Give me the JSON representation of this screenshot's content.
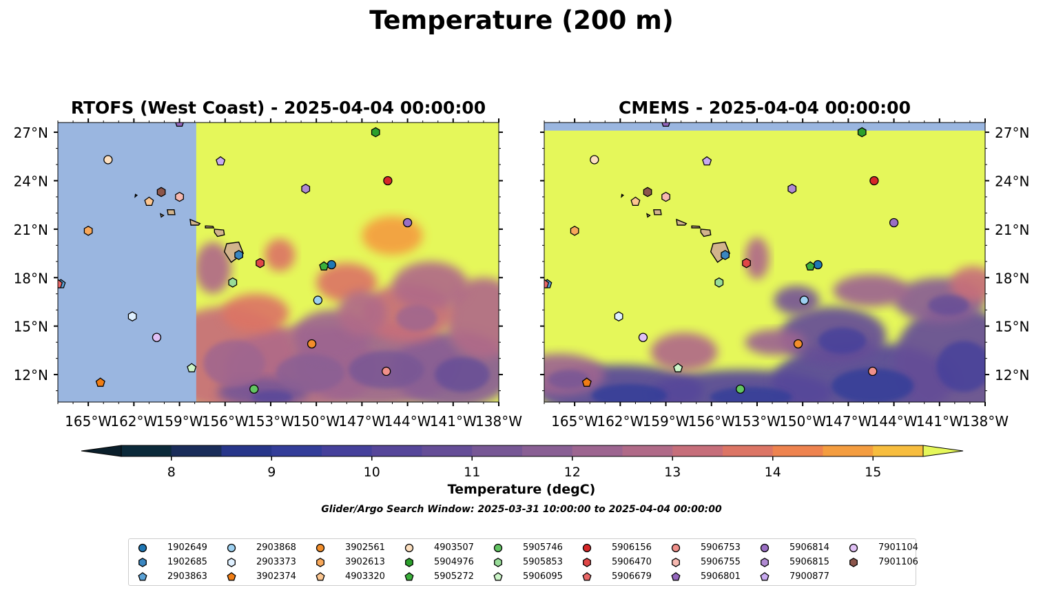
{
  "figure_title": "Temperature (200 m)",
  "panels": [
    {
      "title": "RTOFS (West Coast) - 2025-04-04 00:00:00",
      "y_axis_side": "left"
    },
    {
      "title": "CMEMS - 2025-04-04 00:00:00",
      "y_axis_side": "right"
    }
  ],
  "colorbar": {
    "label": "Temperature (degC)",
    "range": [
      7.5,
      15.5
    ],
    "extend": "both",
    "levels": [
      7.5,
      8,
      8.5,
      9,
      9.5,
      10,
      10.5,
      11,
      11.5,
      12,
      12.5,
      13,
      13.5,
      14,
      14.5,
      15,
      15.5
    ],
    "colors": [
      "#0b2a3a",
      "#1a2d5a",
      "#27368a",
      "#333d99",
      "#45409b",
      "#56469a",
      "#654d97",
      "#775795",
      "#895f94",
      "#9d6590",
      "#b06a88",
      "#c66e7a",
      "#dc7565",
      "#ee834f",
      "#f49d40",
      "#f7bd3e",
      "#f0db52"
    ],
    "under_color": "#0a1f2b",
    "over_color": "#e5f75a",
    "ticks": [
      "8",
      "9",
      "10",
      "11",
      "12",
      "13",
      "14",
      "15"
    ]
  },
  "search_window_note": "Glider/Argo Search Window: 2025-03-31 10:00:00 to 2025-04-04 00:00:00",
  "land_color": "#d2b48c",
  "nodata_color": "#9ab6e0",
  "chart_data": {
    "type": "map",
    "xlim": [
      -167,
      -138
    ],
    "ylim": [
      10.3,
      27.6
    ],
    "x_ticks": [
      -165,
      -162,
      -159,
      -156,
      -153,
      -150,
      -147,
      -144,
      -141,
      -138
    ],
    "x_tick_labels": [
      "165°W",
      "162°W",
      "159°W",
      "156°W",
      "153°W",
      "150°W",
      "147°W",
      "144°W",
      "141°W",
      "138°W"
    ],
    "y_ticks": [
      12,
      15,
      18,
      21,
      24,
      27
    ],
    "y_tick_labels": [
      "12°N",
      "15°N",
      "18°N",
      "21°N",
      "24°N",
      "27°N"
    ],
    "rtofs_data_west_edge_lon": -157.9,
    "cmems_data_north_edge_lat": 27.1,
    "platforms": [
      {
        "id": "1902649",
        "lon": -149.0,
        "lat": 18.8,
        "color": "#1f77b4",
        "marker": "circle"
      },
      {
        "id": "1902685",
        "lon": -155.1,
        "lat": 19.4,
        "color": "#3a86c0",
        "marker": "hexagon"
      },
      {
        "id": "2903863",
        "lon": -166.8,
        "lat": 17.6,
        "color": "#5ba2d6",
        "marker": "pentagon"
      },
      {
        "id": "2903868",
        "lon": -149.9,
        "lat": 16.6,
        "color": "#9dd0f0",
        "marker": "circle"
      },
      {
        "id": "2903373",
        "lon": -162.1,
        "lat": 15.6,
        "color": "#dff0ff",
        "marker": "hexagon"
      },
      {
        "id": "3902374",
        "lon": -164.2,
        "lat": 11.5,
        "color": "#f07d14",
        "marker": "pentagon"
      },
      {
        "id": "3902561",
        "lon": -150.3,
        "lat": 13.9,
        "color": "#f28e2b",
        "marker": "circle"
      },
      {
        "id": "3902613",
        "lon": -165.0,
        "lat": 20.9,
        "color": "#f8a85a",
        "marker": "hexagon"
      },
      {
        "id": "4903320",
        "lon": -161.0,
        "lat": 22.7,
        "color": "#fcc690",
        "marker": "pentagon"
      },
      {
        "id": "4903507",
        "lon": -163.7,
        "lat": 25.3,
        "color": "#fde0c0",
        "marker": "circle"
      },
      {
        "id": "5904976",
        "lon": -146.1,
        "lat": 27.0,
        "color": "#2ca02c",
        "marker": "hexagon"
      },
      {
        "id": "5905272",
        "lon": -149.5,
        "lat": 18.7,
        "color": "#3bb03b",
        "marker": "pentagon"
      },
      {
        "id": "5905746",
        "lon": -154.1,
        "lat": 11.1,
        "color": "#62c462",
        "marker": "circle"
      },
      {
        "id": "5905853",
        "lon": -155.5,
        "lat": 17.7,
        "color": "#98dc98",
        "marker": "hexagon"
      },
      {
        "id": "5906095",
        "lon": -158.2,
        "lat": 12.4,
        "color": "#ccf5c8",
        "marker": "pentagon"
      },
      {
        "id": "5906156",
        "lon": -145.3,
        "lat": 24.0,
        "color": "#d62728",
        "marker": "circle"
      },
      {
        "id": "5906470",
        "lon": -153.7,
        "lat": 18.9,
        "color": "#e04747",
        "marker": "hexagon"
      },
      {
        "id": "5906679",
        "lon": -167.0,
        "lat": 17.6,
        "color": "#ea6868",
        "marker": "pentagon"
      },
      {
        "id": "5906753",
        "lon": -145.4,
        "lat": 12.2,
        "color": "#f0908a",
        "marker": "circle"
      },
      {
        "id": "5906755",
        "lon": -159.0,
        "lat": 23.0,
        "color": "#f6b8b0",
        "marker": "hexagon"
      },
      {
        "id": "5906801",
        "lon": -159.0,
        "lat": 27.6,
        "color": "#9467bd",
        "marker": "pentagon"
      },
      {
        "id": "5906814",
        "lon": -144.0,
        "lat": 21.4,
        "color": "#9a6fc4",
        "marker": "circle"
      },
      {
        "id": "5906815",
        "lon": -150.7,
        "lat": 23.5,
        "color": "#b08ad2",
        "marker": "hexagon"
      },
      {
        "id": "7900877",
        "lon": -156.3,
        "lat": 25.2,
        "color": "#c8aaf0",
        "marker": "pentagon"
      },
      {
        "id": "7901104",
        "lon": -160.5,
        "lat": 14.3,
        "color": "#e0c0f5",
        "marker": "circle"
      },
      {
        "id": "7901106",
        "lon": -160.2,
        "lat": 23.3,
        "color": "#8c564b",
        "marker": "hexagon"
      }
    ]
  }
}
